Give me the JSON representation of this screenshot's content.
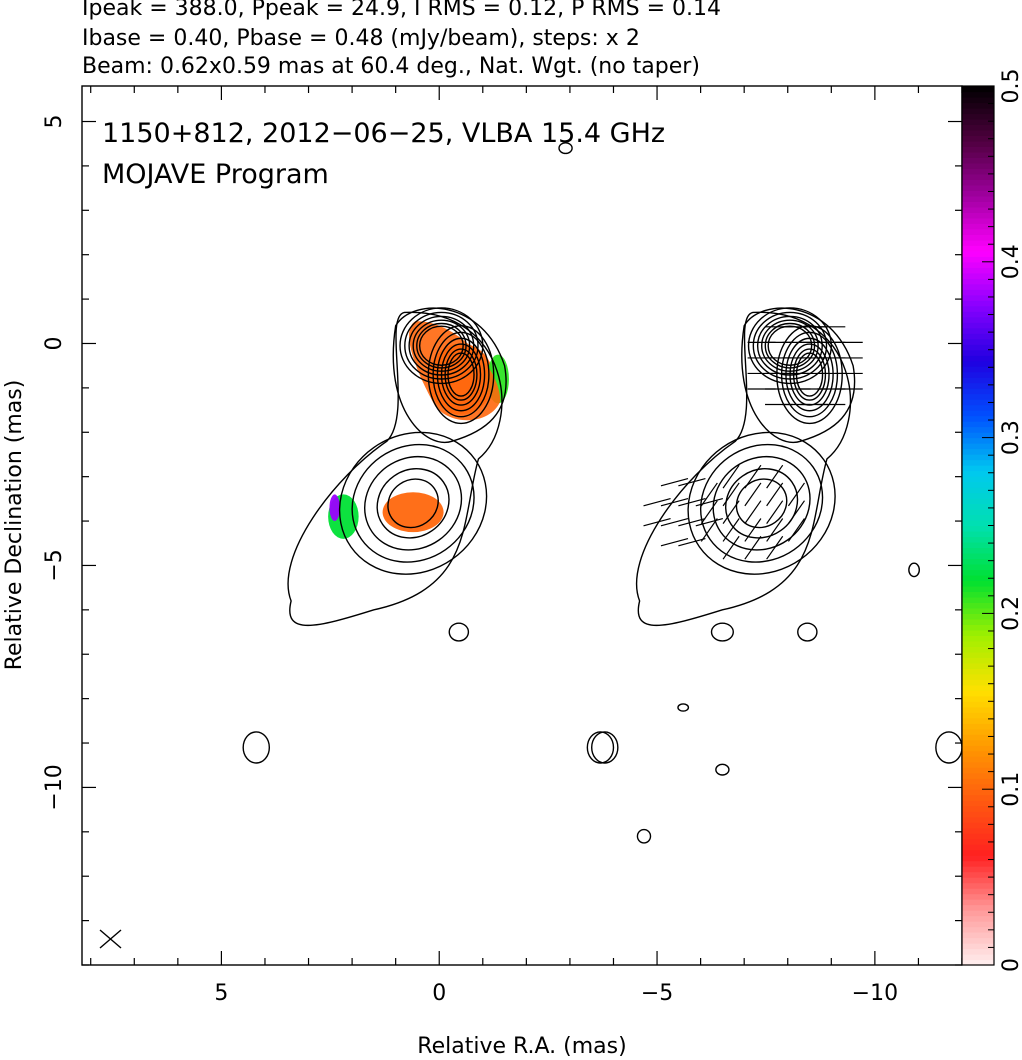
{
  "header": {
    "line1": "Ipeak = 388.0, Ppeak = 24.9, I RMS = 0.12, P RMS = 0.14",
    "line2": "Ibase = 0.40, Pbase = 0.48 (mJy/beam), steps: x 2",
    "line3": "Beam: 0.62x0.59 mas at 60.4 deg., Nat. Wgt. (no taper)"
  },
  "chart_data": {
    "type": "heatmap",
    "annotation_line1": "1150+812, 2012−06−25, VLBA 15.4 GHz",
    "annotation_line2": "MOJAVE Program",
    "xlabel": "Relative R.A. (mas)",
    "ylabel": "Relative Declination (mas)",
    "xlim": [
      8.2,
      -12
    ],
    "ylim": [
      -14,
      5.8
    ],
    "x_ticks": [
      {
        "value": 5,
        "label": "5"
      },
      {
        "value": 0,
        "label": "0"
      },
      {
        "value": -5,
        "label": "−5"
      },
      {
        "value": -10,
        "label": "−10"
      }
    ],
    "y_ticks": [
      {
        "value": 5,
        "label": "5"
      },
      {
        "value": 0,
        "label": "0"
      },
      {
        "value": -5,
        "label": "−5"
      },
      {
        "value": -10,
        "label": "−10"
      }
    ],
    "colorbar": {
      "range": [
        0,
        0.5
      ],
      "ticks": [
        {
          "value": 0,
          "label": "0"
        },
        {
          "value": 0.1,
          "label": "0.1"
        },
        {
          "value": 0.2,
          "label": "0.2"
        },
        {
          "value": 0.3,
          "label": "0.3"
        },
        {
          "value": 0.4,
          "label": "0.4"
        },
        {
          "value": 0.5,
          "label": "0.5"
        }
      ],
      "colormap": [
        "#fff0f0",
        "#ff9a9a",
        "#ff2020",
        "#ff5a10",
        "#ff9a00",
        "#ffe000",
        "#a0f000",
        "#00e030",
        "#00e0b0",
        "#00c8f0",
        "#0050ff",
        "#2000e0",
        "#8800ff",
        "#ff00ff",
        "#a000a0",
        "#500040",
        "#000000"
      ]
    },
    "panels": [
      {
        "name": "left",
        "description": "Stokes I contours overlaid with fractional polarization colour map",
        "ra_offset": 0
      },
      {
        "name": "right",
        "description": "Stokes I contours with EVPA polarization vectors",
        "ra_offset": -8
      }
    ],
    "core_component": {
      "ra": 0,
      "dec": 0
    },
    "jet_components": [
      {
        "ra": -0.5,
        "dec": -0.7
      },
      {
        "ra": 0.6,
        "dec": -3.6
      }
    ],
    "fractional_polarization_regions": [
      {
        "ra_center": -0.5,
        "dec_center": -0.8,
        "value": 0.1
      },
      {
        "ra_center": -1.35,
        "dec_center": -0.8,
        "value": 0.21
      },
      {
        "ra_center": 0.6,
        "dec_center": -3.8,
        "value": 0.1
      },
      {
        "ra_center": 2.2,
        "dec_center": -3.9,
        "value": 0.22
      },
      {
        "ra_center": 2.4,
        "dec_center": -3.7,
        "value": 0.38
      }
    ]
  }
}
